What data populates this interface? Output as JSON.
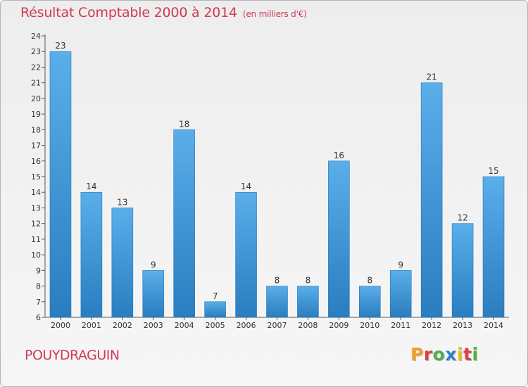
{
  "chart_data": {
    "type": "bar",
    "title": "Résultat Comptable 2000 à 2014",
    "subtitle": "(en milliers d'€)",
    "categories": [
      "2000",
      "2001",
      "2002",
      "2003",
      "2004",
      "2005",
      "2006",
      "2007",
      "2008",
      "2009",
      "2010",
      "2011",
      "2012",
      "2013",
      "2014"
    ],
    "values": [
      23,
      14,
      13,
      9,
      18,
      7,
      14,
      8,
      8,
      16,
      8,
      9,
      21,
      12,
      15
    ],
    "ylim": [
      6,
      24
    ],
    "yticks": [
      6,
      7,
      8,
      9,
      10,
      11,
      12,
      13,
      14,
      15,
      16,
      17,
      18,
      19,
      20,
      21,
      22,
      23,
      24
    ],
    "xlabel": "",
    "ylabel": "",
    "grid": false,
    "bar_color": "#4a9fe0"
  },
  "footer": {
    "commune": "POUYDRAGUIN",
    "brand_letters": [
      "P",
      "r",
      "o",
      "x",
      "i",
      "t",
      "i"
    ],
    "brand_colors": [
      "#f0a020",
      "#e04040",
      "#4fb048",
      "#2f7fd0",
      "#e6c020",
      "#e04040",
      "#4fb048"
    ]
  }
}
